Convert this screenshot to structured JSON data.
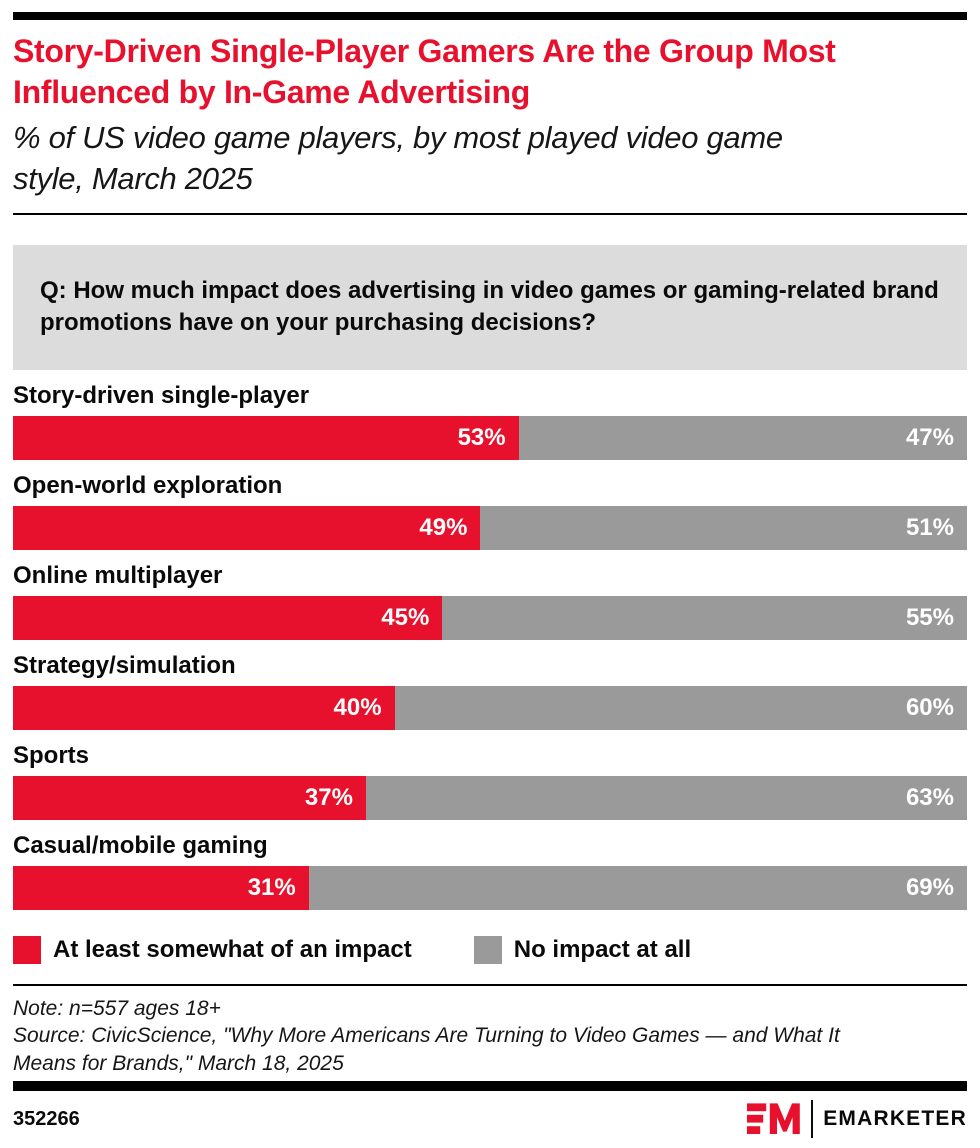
{
  "colors": {
    "accent_red": "#e8112d",
    "bar_gray": "#9a9a9a",
    "question_bg": "#dcdcdc",
    "rule_black": "#000000"
  },
  "header": {
    "title": "Story-Driven Single-Player Gamers Are the Group Most Influenced by In-Game Advertising",
    "subtitle": "% of US video game players, by most played video game style, March 2025"
  },
  "question": {
    "text": "Q: How much impact does advertising in video games or gaming-related brand promotions have on your purchasing decisions?"
  },
  "chart_data": {
    "type": "bar",
    "orientation": "horizontal-stacked",
    "title": "Story-Driven Single-Player Gamers Are the Group Most Influenced by In-Game Advertising",
    "xlabel": "",
    "ylabel": "",
    "xlim": [
      0,
      100
    ],
    "value_suffix": "%",
    "grid": false,
    "legend_position": "bottom",
    "categories": [
      "Story-driven single-player",
      "Open-world exploration",
      "Online multiplayer",
      "Strategy/simulation",
      "Sports",
      "Casual/mobile gaming"
    ],
    "series": [
      {
        "name": "At least somewhat of an impact",
        "color": "#e8112d",
        "values": [
          53,
          49,
          45,
          40,
          37,
          31
        ]
      },
      {
        "name": "No impact at all",
        "color": "#9a9a9a",
        "values": [
          47,
          51,
          55,
          60,
          63,
          69
        ]
      }
    ]
  },
  "footer": {
    "note": "Note: n=557 ages 18+",
    "source": "Source: CivicScience, \"Why More Americans Are Turning to Video Games — and What It Means for Brands,\" March 18, 2025",
    "chart_id": "352266",
    "brand": "EMARKETER"
  }
}
